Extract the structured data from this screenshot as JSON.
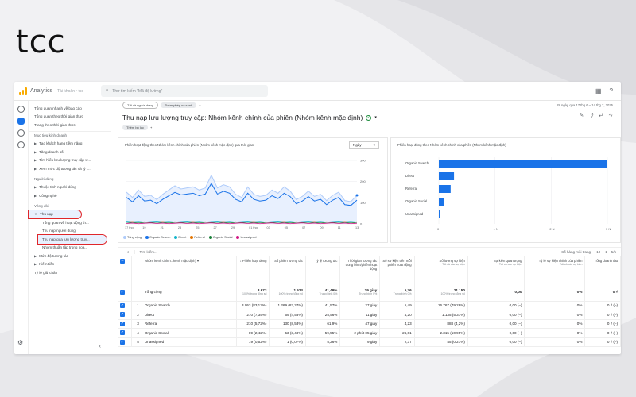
{
  "brand": "tcc",
  "app": {
    "title": "Analytics",
    "account": "Tài khoản • tcc",
    "search_placeholder": "Thử tìm kiếm \"Mã độ lường\""
  },
  "sidebar": {
    "top_items": [
      "Tổng quan nhanh về báo cáo",
      "Tổng quan theo thời gian thực",
      "Trang theo thời gian thực"
    ],
    "sections": [
      {
        "label": "Mục tiêu kinh doanh",
        "items": [
          "Tạo khách hàng tiềm năng",
          "Tăng doanh số",
          "Tìm hiểu lưu lượng truy cập w...",
          "Xem mức độ tương tác và tỷ l..."
        ]
      },
      {
        "label": "Người dùng",
        "items": [
          "Thuộc tính người dùng",
          "Công nghệ"
        ]
      },
      {
        "label": "Vòng đời",
        "items": [
          "Thu nạp"
        ]
      }
    ],
    "sub_items": [
      "Tổng quan về hoạt động th...",
      "Thu nạp người dùng",
      "Thu nạp qua lưu lượng truy...",
      "Nhóm thuần tập trong hoạ..."
    ],
    "bottom_items": [
      "Mức độ tương tác",
      "Kiếm tiền",
      "Tỷ lệ giữ chân"
    ]
  },
  "filters": {
    "chip1": "Tất cả người dùng",
    "chip2": "Thêm phép so sánh",
    "date": "28 ngày qua   17 thg 6 – 14 thg 7, 2025"
  },
  "report": {
    "title": "Thu nạp lưu lượng truy cập: Nhóm kênh chính của phiên (Nhóm kênh mặc định)",
    "add_filter": "Thêm bộ lọc"
  },
  "line_chart": {
    "title": "Phiên hoạt động theo Nhóm kênh chính của phiên (Nhóm kênh mặc định) qua thời gian",
    "dropdown": "Ngày",
    "y_ticks": [
      "300",
      "200",
      "100",
      "0"
    ],
    "x_ticks": [
      "17 thg",
      "19",
      "21",
      "23",
      "25",
      "27",
      "29",
      "01 thg",
      "03",
      "05",
      "07",
      "09",
      "11",
      "13"
    ],
    "legend": [
      "Tổng cộng",
      "Organic Search",
      "Direct",
      "Referral",
      "Organic Social",
      "Unassigned"
    ],
    "colors": {
      "total": "#aecbfa",
      "organic": "#1a73e8",
      "direct": "#12b5cb",
      "referral": "#e37400",
      "social": "#188038",
      "unassigned": "#d01884"
    }
  },
  "bar_chart": {
    "title": "Phiên hoạt động theo Nhóm kênh chính của phiên (Nhóm kênh mặc định)",
    "categories": [
      "Organic Search",
      "Direct",
      "Referral",
      "Organic Social",
      "Unassigned"
    ],
    "values": [
      3053,
      270,
      210,
      89,
      19
    ],
    "x_ticks": [
      "0",
      "1 N",
      "2 N",
      "3 N"
    ],
    "color": "#1a73e8"
  },
  "table": {
    "search_placeholder": "Tìm kiếm...",
    "rows_label": "Số hàng mỗi trang:",
    "rows_value": "10",
    "pager": "1 – 5/5",
    "dim_header": "Nhóm kênh chính...kênh mặc định)",
    "headers": [
      "Phiên hoạt động",
      "Số phiên tương tác",
      "Tỷ lệ tương tác",
      "Thời gian tương tác trung bình/phiên hoạt động",
      "Số sự kiện trên mỗi phiên hoạt động",
      "Số lượng sự kiện",
      "Sự kiện quan trọng",
      "Tỷ lệ sự kiện chính của phiên",
      "Tổng doanh thu"
    ],
    "header_sub": [
      "",
      "",
      "",
      "",
      "",
      "Tất cả các sự kiện",
      "Tất cả các sự kiện",
      "Tất cả các sự kiện",
      ""
    ],
    "total_label": "Tổng cộng",
    "totals": [
      "3.673",
      "1.524",
      "41,49%",
      "29 giây",
      "5,76",
      "21.150",
      "0,00",
      "0%",
      "0 ₫"
    ],
    "totals_sub": [
      "100% trong tổng số",
      "100% trong tổng số",
      "Trung bình 0%",
      "Trung bình 0%",
      "Trung bình 0%",
      "100% trong tổng số",
      "",
      "",
      ""
    ],
    "rows": [
      {
        "n": "1",
        "name": "Organic Search",
        "vals": [
          "3.053 (83,12%)",
          "1.269 (83,27%)",
          "41,57%",
          "27 giây",
          "5,49",
          "16.767 (79,28%)",
          "0,00 (–)",
          "0%",
          "0 ₫ (–)"
        ]
      },
      {
        "n": "2",
        "name": "Direct",
        "vals": [
          "270 (7,35%)",
          "69 (4,53%)",
          "25,56%",
          "11 giây",
          "4,20",
          "1.135 (5,37%)",
          "0,00 (–)",
          "0%",
          "0 ₫ (–)"
        ]
      },
      {
        "n": "3",
        "name": "Referral",
        "vals": [
          "210 (5,72%)",
          "130 (8,53%)",
          "61,9%",
          "47 giây",
          "4,23",
          "888 (4,2%)",
          "0,00 (–)",
          "0%",
          "0 ₫ (–)"
        ]
      },
      {
        "n": "4",
        "name": "Organic Social",
        "vals": [
          "89 (2,42%)",
          "53 (3,48%)",
          "59,55%",
          "2 phút 05 giây",
          "26,01",
          "2.315 (10,95%)",
          "0,00 (–)",
          "0%",
          "0 ₫ (–)"
        ]
      },
      {
        "n": "5",
        "name": "Unassigned",
        "vals": [
          "19 (0,52%)",
          "1 (0,07%)",
          "5,26%",
          "9 giây",
          "2,37",
          "45 (0,21%)",
          "0,00 (–)",
          "0%",
          "0 ₫ (–)"
        ]
      }
    ]
  }
}
